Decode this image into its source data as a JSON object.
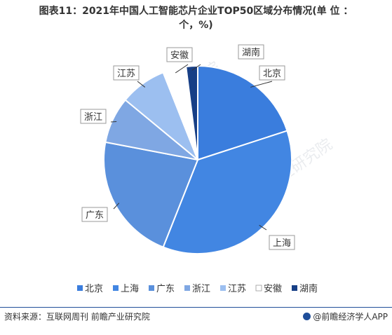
{
  "title_line1": "图表11：2021年中国人工智能芯片企业TOP50区域分布情况(单 位 ：",
  "title_line2": "个，%)",
  "source": "资料来源：互联网周刊 前瞻产业研究院",
  "brand": "@前瞻经济学人APP",
  "watermark": "前瞻产业研究院",
  "chart_data": {
    "type": "pie",
    "title": "图表11：2021年中国人工智能芯片企业TOP50区域分布情况(单 位 ：个，%)",
    "unit": "%",
    "categories": [
      "北京",
      "上海",
      "广东",
      "浙江",
      "江苏",
      "安徽",
      "湖南"
    ],
    "values": [
      20,
      36,
      22,
      8,
      8,
      4,
      2
    ],
    "colors": [
      "#3a7ddd",
      "#4286e2",
      "#5a90dc",
      "#7fa7e3",
      "#9cbff0",
      "#ffffff",
      "#173f86"
    ],
    "legend": "bottom",
    "start_angle_deg": 0,
    "direction": "clockwise"
  }
}
